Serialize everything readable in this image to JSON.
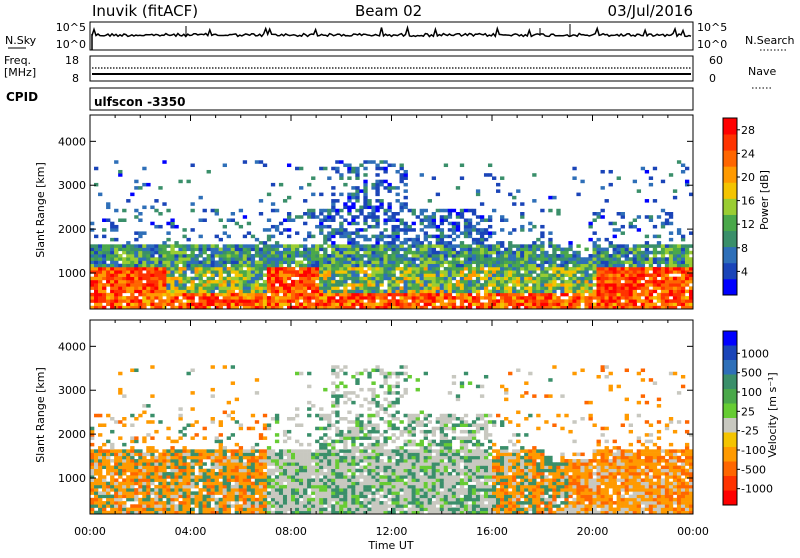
{
  "header": {
    "station": "Inuvik (fitACF)",
    "beam": "Beam 02",
    "date": "03/Jul/2016"
  },
  "noise_panel": {
    "left_label": "N.Sky",
    "right_label": "N.Search",
    "left_ticks": [
      "10^5",
      "10^0"
    ],
    "right_ticks": [
      "10^5",
      "10^0"
    ]
  },
  "freq_panel": {
    "left_label_1": "Freq.",
    "left_label_2": "[MHz]",
    "right_label": "Nave",
    "left_ticks": [
      "18",
      "8"
    ],
    "right_ticks": [
      "60",
      "0"
    ]
  },
  "cpid": {
    "label": "CPID",
    "value": "ulfscon -3350"
  },
  "chart_data": [
    {
      "type": "heatmap",
      "title": "",
      "xlabel": "",
      "ylabel": "Slant Range [km]",
      "y_ticks": [
        "1000",
        "2000",
        "3000",
        "4000"
      ],
      "ylim": [
        180,
        4600
      ],
      "xlim": [
        "00:00",
        "24:00"
      ],
      "colorbar": {
        "label": "Power [dB]",
        "ticks": [
          "4",
          "8",
          "12",
          "16",
          "20",
          "24",
          "28"
        ],
        "range": [
          0,
          30
        ],
        "colors": [
          "#0000ff",
          "#1a44b8",
          "#2e6fb8",
          "#3a8f6a",
          "#4aa84a",
          "#9acd32",
          "#f4c400",
          "#ff9a00",
          "#ff6600",
          "#ff3300",
          "#ff0000"
        ]
      }
    },
    {
      "type": "heatmap",
      "title": "",
      "xlabel": "Time UT",
      "ylabel": "Slant Range [km]",
      "x_ticks": [
        "00:00",
        "04:00",
        "08:00",
        "12:00",
        "16:00",
        "20:00",
        "00:00"
      ],
      "y_ticks": [
        "1000",
        "2000",
        "3000",
        "4000"
      ],
      "ylim": [
        180,
        4600
      ],
      "xlim": [
        "00:00",
        "24:00"
      ],
      "colorbar": {
        "label": "Velocity [m s⁻¹]",
        "ticks": [
          "1000",
          "500",
          "100",
          "25",
          "-25",
          "-100",
          "-500",
          "-1000"
        ],
        "colors": [
          "#0000ff",
          "#1a44b8",
          "#2e6fb8",
          "#3a8f6a",
          "#4aa84a",
          "#66cc33",
          "#c8c8c0",
          "#f4c400",
          "#ff9a00",
          "#ff6600",
          "#ff3300",
          "#ff0000"
        ]
      }
    }
  ]
}
